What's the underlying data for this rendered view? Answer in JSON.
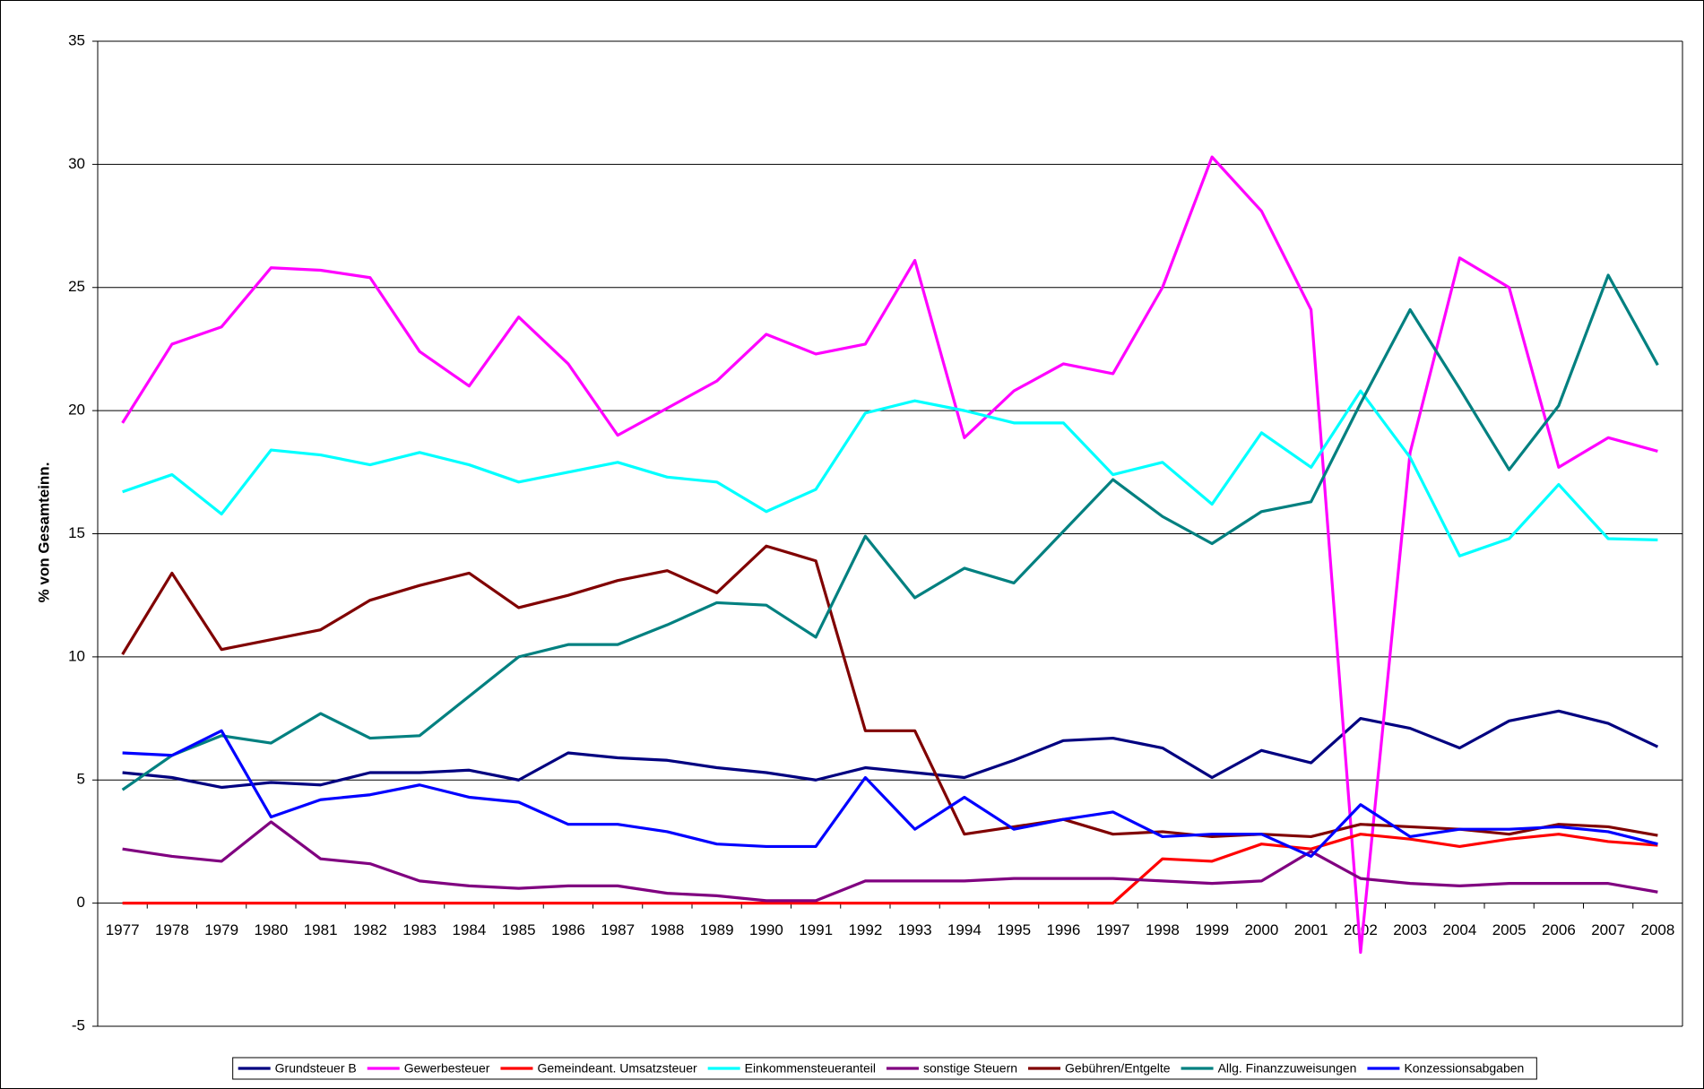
{
  "chart_data": {
    "type": "line",
    "y_label": "% von Gesamteinn.",
    "categories": [
      "1977",
      "1978",
      "1979",
      "1980",
      "1981",
      "1982",
      "1983",
      "1984",
      "1985",
      "1986",
      "1987",
      "1988",
      "1989",
      "1990",
      "1991",
      "1992",
      "1993",
      "1994",
      "1995",
      "1996",
      "1997",
      "1998",
      "1999",
      "2000",
      "2001",
      "2002",
      "2003",
      "2004",
      "2005",
      "2006",
      "2007",
      "2008"
    ],
    "ylim": [
      -5,
      35
    ],
    "yticks": [
      -5,
      0,
      5,
      10,
      15,
      20,
      25,
      30,
      35
    ],
    "grid": true,
    "legend": "bottom",
    "series": [
      {
        "name": "Grundsteuer B",
        "color": "#000080",
        "values": [
          5.3,
          5.1,
          4.7,
          4.9,
          4.8,
          5.3,
          5.3,
          5.4,
          5.0,
          6.1,
          5.9,
          5.8,
          5.5,
          5.3,
          5.0,
          5.5,
          5.3,
          5.1,
          5.8,
          6.6,
          6.7,
          6.3,
          5.1,
          6.2,
          5.7,
          7.5,
          7.1,
          6.3,
          7.4,
          7.8,
          7.3,
          6.35
        ]
      },
      {
        "name": "Gewerbesteuer",
        "color": "#ff00ff",
        "values": [
          19.5,
          22.7,
          23.4,
          25.8,
          25.7,
          25.4,
          22.4,
          21.0,
          23.8,
          21.9,
          19.0,
          20.1,
          21.2,
          23.1,
          22.3,
          22.7,
          26.1,
          18.9,
          20.8,
          21.9,
          21.5,
          25.0,
          30.3,
          28.1,
          24.1,
          -2.0,
          18.3,
          26.2,
          25.0,
          17.7,
          18.9,
          18.35
        ]
      },
      {
        "name": "Gemeindeant. Umsatzsteuer",
        "color": "#ff0000",
        "values": [
          0,
          0,
          0,
          0,
          0,
          0,
          0,
          0,
          0,
          0,
          0,
          0,
          0,
          0,
          0,
          0,
          0,
          0,
          0,
          0,
          0,
          1.8,
          1.7,
          2.4,
          2.2,
          2.8,
          2.6,
          2.3,
          2.6,
          2.8,
          2.5,
          2.35
        ]
      },
      {
        "name": "Einkommensteueranteil",
        "color": "#00ffff",
        "values": [
          16.7,
          17.4,
          15.8,
          18.4,
          18.2,
          17.8,
          18.3,
          17.8,
          17.1,
          17.5,
          17.9,
          17.3,
          17.1,
          15.9,
          16.8,
          19.9,
          20.4,
          20.0,
          19.5,
          19.5,
          17.4,
          17.9,
          16.2,
          19.1,
          17.7,
          20.8,
          18.1,
          14.1,
          14.8,
          17.0,
          14.8,
          14.75
        ]
      },
      {
        "name": "sonstige Steuern",
        "color": "#800080",
        "values": [
          2.2,
          1.9,
          1.7,
          3.3,
          1.8,
          1.6,
          0.9,
          0.7,
          0.6,
          0.7,
          0.7,
          0.4,
          0.3,
          0.1,
          0.1,
          0.9,
          0.9,
          0.9,
          1.0,
          1.0,
          1.0,
          0.9,
          0.8,
          0.9,
          2.1,
          1.0,
          0.8,
          0.7,
          0.8,
          0.8,
          0.8,
          0.45
        ]
      },
      {
        "name": "Gebühren/Entgelte",
        "color": "#800000",
        "values": [
          10.1,
          13.4,
          10.3,
          10.7,
          11.1,
          12.3,
          12.9,
          13.4,
          12.0,
          12.5,
          13.1,
          13.5,
          12.6,
          14.5,
          13.9,
          7.0,
          7.0,
          2.8,
          3.1,
          3.4,
          2.8,
          2.9,
          2.7,
          2.8,
          2.7,
          3.2,
          3.1,
          3.0,
          2.8,
          3.2,
          3.1,
          2.75
        ]
      },
      {
        "name": "Allg. Finanzzuweisungen",
        "color": "#008080",
        "values": [
          4.6,
          6.0,
          6.8,
          6.5,
          7.7,
          6.7,
          6.8,
          8.4,
          10.0,
          10.5,
          10.5,
          11.3,
          12.2,
          12.1,
          10.8,
          14.9,
          12.4,
          13.6,
          13.0,
          15.1,
          17.2,
          15.7,
          14.6,
          15.9,
          16.3,
          20.3,
          24.1,
          20.9,
          17.6,
          20.2,
          25.5,
          21.85
        ]
      },
      {
        "name": "Konzessionsabgaben",
        "color": "#0000ff",
        "values": [
          6.1,
          6.0,
          7.0,
          3.5,
          4.2,
          4.4,
          4.8,
          4.3,
          4.1,
          3.2,
          3.2,
          2.9,
          2.4,
          2.3,
          2.3,
          5.1,
          3.0,
          4.3,
          3.0,
          3.4,
          3.7,
          2.7,
          2.8,
          2.8,
          1.9,
          4.0,
          2.7,
          3.0,
          3.0,
          3.1,
          2.9,
          2.4
        ]
      }
    ]
  }
}
